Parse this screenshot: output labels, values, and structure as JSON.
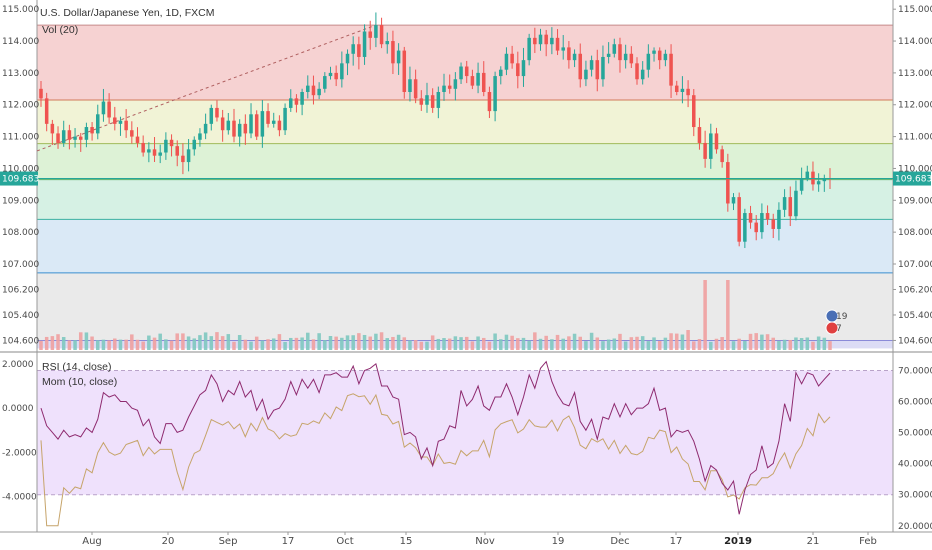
{
  "colors": {
    "up": "#26a69a",
    "down": "#ef5350",
    "vol_up": "#7ec8c0",
    "vol_down": "#f0a0a0",
    "rsi_line": "#c6a46a",
    "mom_line": "#8e2a6f",
    "price_badge": "#26a69a",
    "rsi_band": "#ebd9fb",
    "gridline": "#e6e6e6"
  },
  "chart_data": [
    {
      "type": "candlestick",
      "title": "U.S. Dollar/Japanese Yen, 1D, FXCM",
      "indicator_label": "Vol (20)",
      "last_price_label": "109.683",
      "ylim": [
        104.3,
        115.1
      ],
      "y_ticks": [
        "115.000",
        "114.000",
        "113.000",
        "112.000",
        "111.000",
        "110.000",
        "109.000",
        "108.000",
        "107.000",
        "106.200",
        "105.400",
        "104.600"
      ],
      "fib_bands": [
        {
          "from": 114.5,
          "to": 112.15,
          "color": "#f5caca"
        },
        {
          "from": 112.15,
          "to": 110.78,
          "color": "#eef1cf"
        },
        {
          "from": 110.78,
          "to": 109.65,
          "color": "#d7f0cf"
        },
        {
          "from": 109.65,
          "to": 108.4,
          "color": "#cfeedf"
        },
        {
          "from": 108.4,
          "to": 106.72,
          "color": "#d3e5f5"
        },
        {
          "from": 106.72,
          "to": 104.6,
          "color": "#e6e6e6"
        },
        {
          "from": 104.6,
          "to": 104.35,
          "color": "#d6d6f3"
        }
      ],
      "fib_lines": [
        {
          "value": 114.5,
          "color": "#c58a8a"
        },
        {
          "value": 112.15,
          "color": "#d17a5a"
        },
        {
          "value": 110.78,
          "color": "#9fbb5a"
        },
        {
          "value": 109.65,
          "color": "#58b06a"
        },
        {
          "value": 108.4,
          "color": "#3bb0a0"
        },
        {
          "value": 106.72,
          "color": "#3a8fd0"
        },
        {
          "value": 104.6,
          "color": "#8a8ad8"
        }
      ],
      "trendline": {
        "from": 110.55,
        "to": 114.5
      },
      "candles_close": [
        112.2,
        111.4,
        111.1,
        110.8,
        111.2,
        110.9,
        111.0,
        110.9,
        111.3,
        111.1,
        111.7,
        112.1,
        111.6,
        111.4,
        111.5,
        111.2,
        111.0,
        110.8,
        110.5,
        110.6,
        110.4,
        110.5,
        110.9,
        110.7,
        110.4,
        110.2,
        110.6,
        110.9,
        111.1,
        111.4,
        111.9,
        111.6,
        111.2,
        111.5,
        111.0,
        111.4,
        111.1,
        111.7,
        111.0,
        111.8,
        111.4,
        111.5,
        111.2,
        111.9,
        112.2,
        112.0,
        112.4,
        112.6,
        112.3,
        112.5,
        112.9,
        113.0,
        112.8,
        113.3,
        113.6,
        113.9,
        113.5,
        114.3,
        114.1,
        114.5,
        113.9,
        114.0,
        113.3,
        113.7,
        112.4,
        112.8,
        112.2,
        112.0,
        112.3,
        111.9,
        112.4,
        112.6,
        112.5,
        112.8,
        113.2,
        112.9,
        112.6,
        113.0,
        112.4,
        111.8,
        112.9,
        113.1,
        113.6,
        113.3,
        112.9,
        113.4,
        114.1,
        113.9,
        114.2,
        113.9,
        114.1,
        113.7,
        113.8,
        113.4,
        113.6,
        112.8,
        113.1,
        113.4,
        112.8,
        113.5,
        113.6,
        113.9,
        113.4,
        113.6,
        113.3,
        112.8,
        113.1,
        113.6,
        113.7,
        113.4,
        113.6,
        112.6,
        112.4,
        112.5,
        112.3,
        111.3,
        110.8,
        110.3,
        111.1,
        110.6,
        110.2,
        108.9,
        109.1,
        107.7,
        108.6,
        108.3,
        108.0,
        108.6,
        108.4,
        108.1,
        108.7,
        109.1,
        108.5,
        109.3,
        109.7,
        109.9,
        109.5,
        109.6,
        109.7,
        109.683
      ],
      "volume_note": "volume bars shown without axis",
      "rsi": {
        "label": "RSI (14, close)",
        "y_ticks": [
          "70.0000",
          "60.0000",
          "50.0000",
          "40.0000",
          "30.0000",
          "20.0000"
        ],
        "ylim": [
          18,
          75
        ],
        "band": [
          30,
          70
        ]
      },
      "momentum": {
        "label": "Mom (10, close)",
        "y_ticks": [
          "2.0000",
          "0.0000",
          "-2.0000",
          "-4.0000"
        ],
        "ylim": [
          -5.6,
          2.4
        ]
      },
      "x_ticks": [
        {
          "label": "Aug",
          "strong": false
        },
        {
          "label": "20",
          "strong": false
        },
        {
          "label": "Sep",
          "strong": false
        },
        {
          "label": "17",
          "strong": false
        },
        {
          "label": "Oct",
          "strong": false
        },
        {
          "label": "15",
          "strong": false
        },
        {
          "label": "Nov",
          "strong": false
        },
        {
          "label": "19",
          "strong": false
        },
        {
          "label": "Dec",
          "strong": false
        },
        {
          "label": "17",
          "strong": false
        },
        {
          "label": "2019",
          "strong": true
        },
        {
          "label": "21",
          "strong": false
        },
        {
          "label": "Feb",
          "strong": false
        }
      ],
      "events": [
        {
          "label": "19"
        },
        {
          "label": "7"
        }
      ]
    }
  ]
}
